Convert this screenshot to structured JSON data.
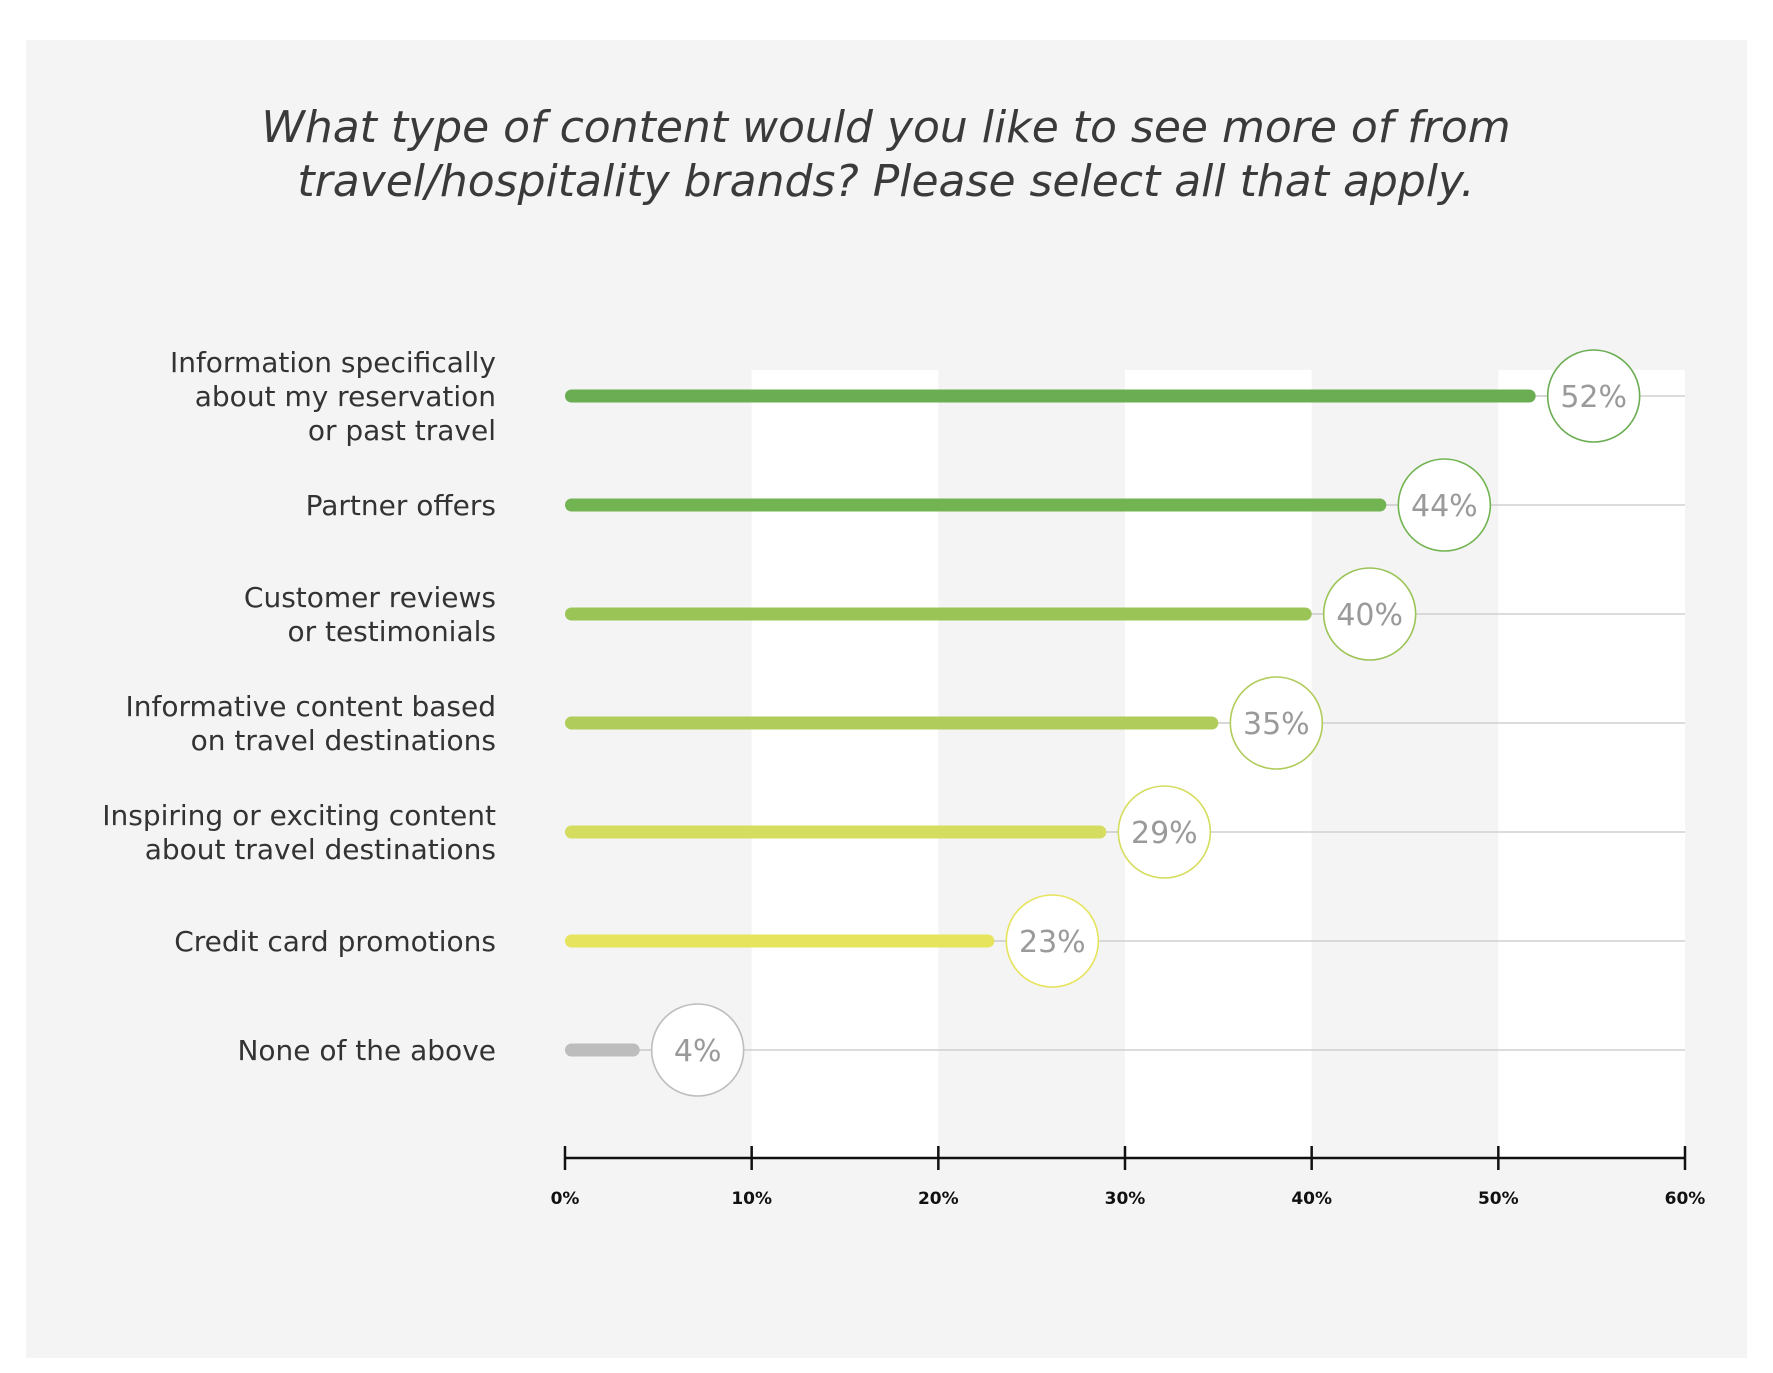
{
  "chart_data": {
    "type": "bar",
    "orientation": "horizontal",
    "title": "What type of content would you like to see more of from travel/hospitality brands? Please select all that apply.",
    "title_lines": [
      "What type of content would you like to see more of from",
      "travel/hospitality brands? Please select all that apply."
    ],
    "categories": [
      "Information specifically about my reservation or past travel",
      "Partner offers",
      "Customer reviews or testimonials",
      "Informative content based on travel destinations",
      "Inspiring or exciting content about travel destinations",
      "Credit card promotions",
      "None of the above"
    ],
    "category_lines": [
      [
        "Information specifically",
        "about my reservation",
        "or past travel"
      ],
      [
        "Partner offers"
      ],
      [
        "Customer reviews",
        "or testimonials"
      ],
      [
        "Informative content based",
        "on travel destinations"
      ],
      [
        "Inspiring or exciting content",
        "about travel destinations"
      ],
      [
        "Credit card promotions"
      ],
      [
        "None of the above"
      ]
    ],
    "values": [
      52,
      44,
      40,
      35,
      29,
      23,
      4
    ],
    "value_labels": [
      "52%",
      "44%",
      "40%",
      "35%",
      "29%",
      "23%",
      "4%"
    ],
    "bar_colors": [
      "#6aad52",
      "#72b451",
      "#9bc457",
      "#b0cc5a",
      "#d5dd5f",
      "#e6e35d",
      "#bdbdbd"
    ],
    "xlim": [
      0,
      60
    ],
    "xticks": [
      0,
      10,
      20,
      30,
      40,
      50,
      60
    ],
    "xtick_labels": [
      "0%",
      "10%",
      "20%",
      "30%",
      "40%",
      "50%",
      "60%"
    ],
    "xlabel": "",
    "ylabel": "",
    "grid": "alternating vertical bands",
    "legend": "none"
  }
}
